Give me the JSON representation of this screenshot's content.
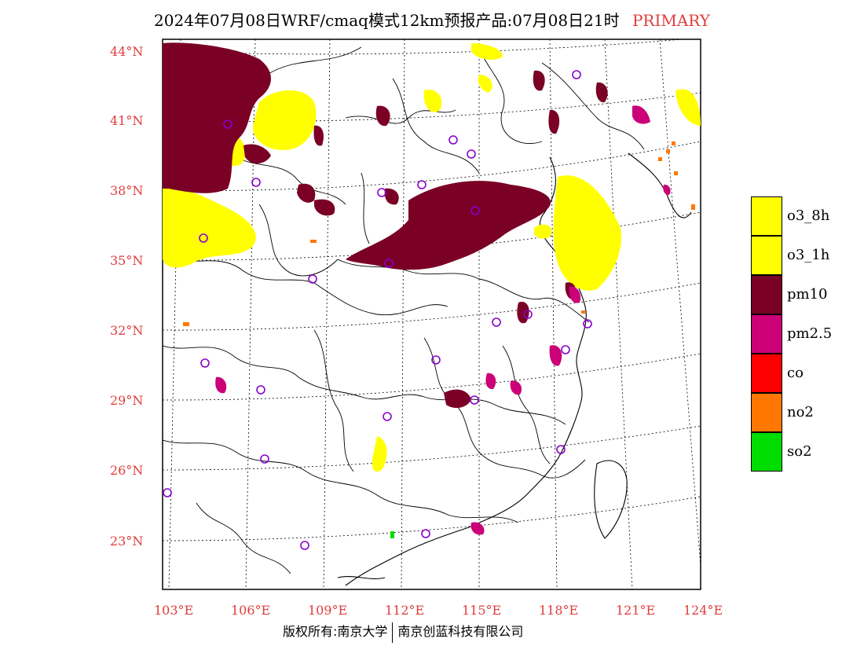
{
  "header": {
    "title": "2024年07月08日WRF/cmaq模式12km预报产品:07月08日21时",
    "tag": "PRIMARY"
  },
  "map": {
    "lat_labels": [
      "44°N",
      "41°N",
      "38°N",
      "35°N",
      "32°N",
      "29°N",
      "26°N",
      "23°N"
    ],
    "lon_labels": [
      "103°E",
      "106°E",
      "109°E",
      "112°E",
      "115°E",
      "118°E",
      "121°E",
      "124°E"
    ],
    "colors": {
      "o3": "#ffff00",
      "pm10": "#7a0026",
      "pm25": "#cc0077",
      "co": "#ff0000",
      "no2": "#ff7700",
      "so2": "#00dd00",
      "station": "#8800cc"
    }
  },
  "legend": {
    "items": [
      {
        "label": "o3_8h",
        "color": "#ffff00"
      },
      {
        "label": "o3_1h",
        "color": "#ffff00"
      },
      {
        "label": "pm10",
        "color": "#7a0026"
      },
      {
        "label": "pm2.5",
        "color": "#cc0077"
      },
      {
        "label": "co",
        "color": "#ff0000"
      },
      {
        "label": "no2",
        "color": "#ff7700"
      },
      {
        "label": "so2",
        "color": "#00dd00"
      }
    ]
  },
  "footer": {
    "left": "版权所有:南京大学",
    "right": "南京创蓝科技有限公司"
  }
}
